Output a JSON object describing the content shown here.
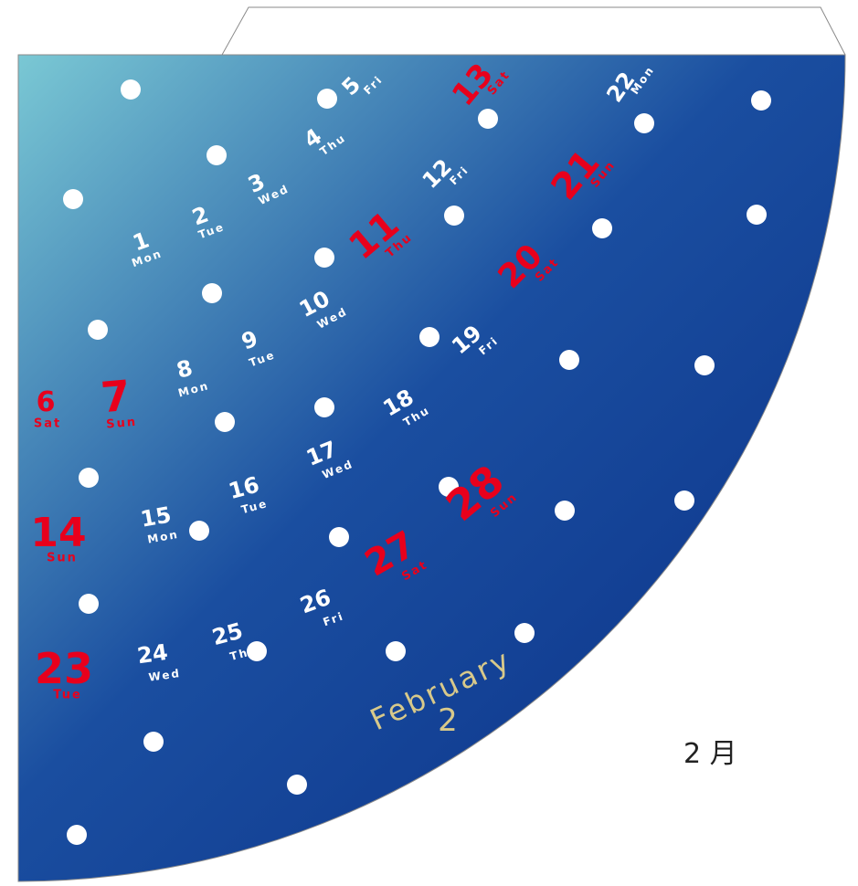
{
  "calendar": {
    "month_name": "February",
    "month_number": "2",
    "caption": "2 月",
    "colors": {
      "weekday": "#ffffff",
      "holiday": "#e8001c",
      "title": "#d8c98a",
      "gradient_light": "#7ac8d4",
      "gradient_dark": "#0a2f86"
    },
    "days": [
      {
        "num": "1",
        "dow": "Mon",
        "kind": "weekday"
      },
      {
        "num": "2",
        "dow": "Tue",
        "kind": "weekday"
      },
      {
        "num": "3",
        "dow": "Wed",
        "kind": "weekday"
      },
      {
        "num": "4",
        "dow": "Thu",
        "kind": "weekday"
      },
      {
        "num": "5",
        "dow": "Fri",
        "kind": "weekday"
      },
      {
        "num": "6",
        "dow": "Sat",
        "kind": "holiday"
      },
      {
        "num": "7",
        "dow": "Sun",
        "kind": "holiday"
      },
      {
        "num": "8",
        "dow": "Mon",
        "kind": "weekday"
      },
      {
        "num": "9",
        "dow": "Tue",
        "kind": "weekday"
      },
      {
        "num": "10",
        "dow": "Wed",
        "kind": "weekday"
      },
      {
        "num": "11",
        "dow": "Thu",
        "kind": "holiday"
      },
      {
        "num": "12",
        "dow": "Fri",
        "kind": "weekday"
      },
      {
        "num": "13",
        "dow": "Sat",
        "kind": "holiday"
      },
      {
        "num": "14",
        "dow": "Sun",
        "kind": "holiday"
      },
      {
        "num": "15",
        "dow": "Mon",
        "kind": "weekday"
      },
      {
        "num": "16",
        "dow": "Tue",
        "kind": "weekday"
      },
      {
        "num": "17",
        "dow": "Wed",
        "kind": "weekday"
      },
      {
        "num": "18",
        "dow": "Thu",
        "kind": "weekday"
      },
      {
        "num": "19",
        "dow": "Fri",
        "kind": "weekday"
      },
      {
        "num": "20",
        "dow": "Sat",
        "kind": "holiday"
      },
      {
        "num": "21",
        "dow": "Sun",
        "kind": "holiday"
      },
      {
        "num": "22",
        "dow": "Mon",
        "kind": "weekday"
      },
      {
        "num": "23",
        "dow": "Tue",
        "kind": "holiday"
      },
      {
        "num": "24",
        "dow": "Wed",
        "kind": "weekday"
      },
      {
        "num": "25",
        "dow": "Thu",
        "kind": "weekday"
      },
      {
        "num": "26",
        "dow": "Fri",
        "kind": "weekday"
      },
      {
        "num": "27",
        "dow": "Sat",
        "kind": "holiday"
      },
      {
        "num": "28",
        "dow": "Sun",
        "kind": "holiday"
      }
    ]
  }
}
